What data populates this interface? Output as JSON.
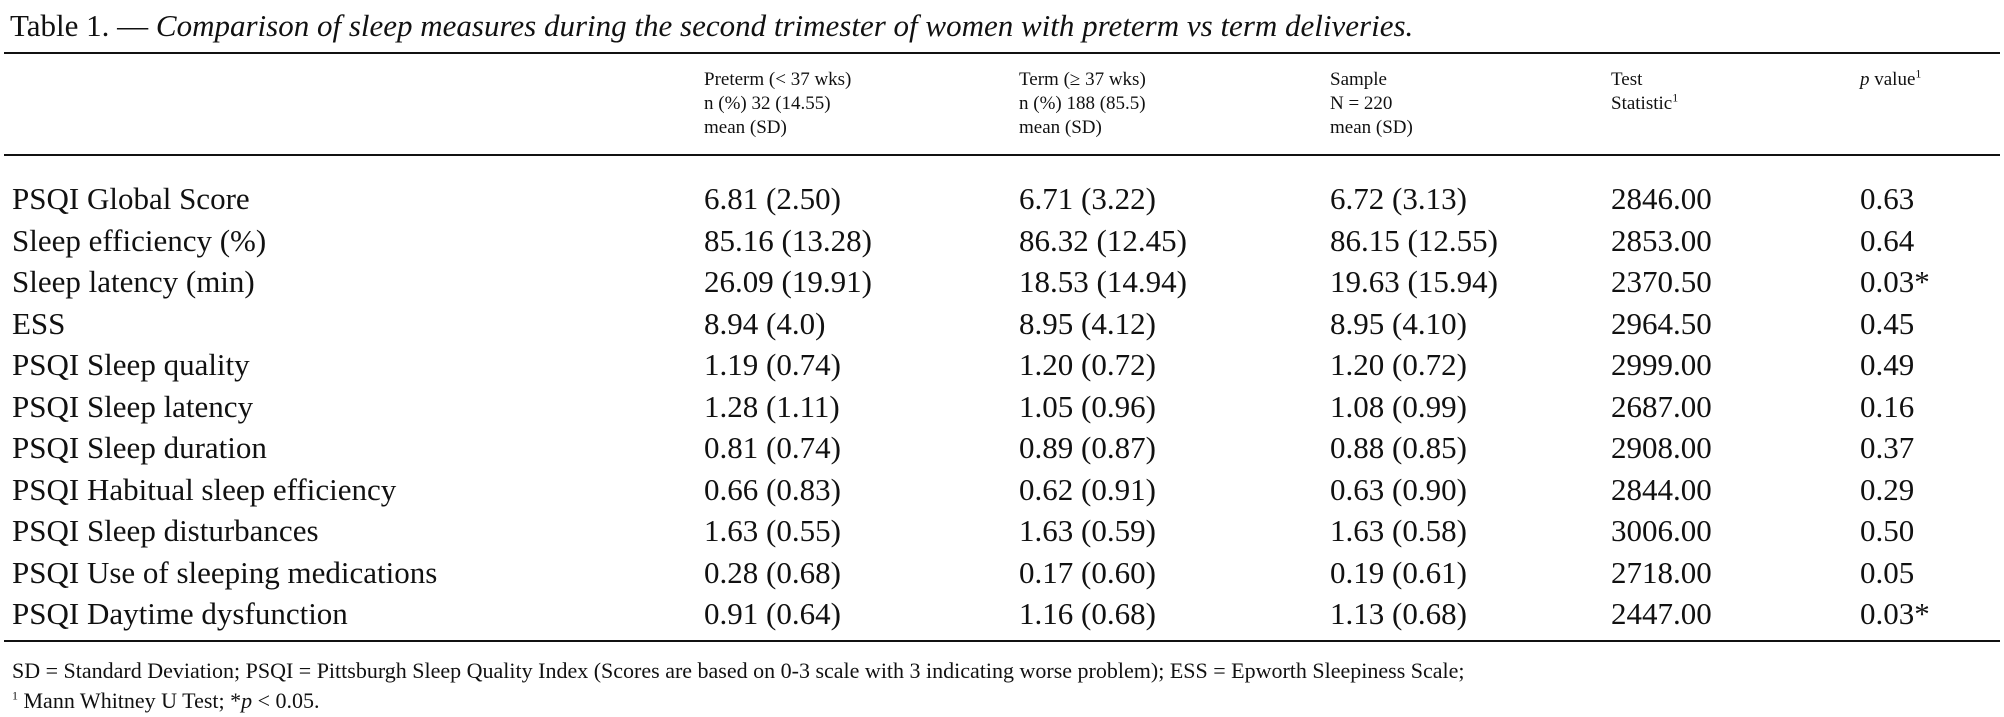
{
  "caption": {
    "label": "Table 1. —",
    "title": "Comparison of sleep measures during the second trimester of women with preterm vs term deliveries."
  },
  "columns": [
    {
      "lines": [
        "Preterm (< 37 wks)",
        "n (%) 32 (14.55)",
        "mean (SD)"
      ]
    },
    {
      "lines": [
        "Term (≥ 37 wks)",
        "n (%) 188 (85.5)",
        "mean (SD)"
      ]
    },
    {
      "lines": [
        "Sample",
        "N = 220",
        "mean (SD)"
      ]
    },
    {
      "lines": [
        "Test",
        "Statistic"
      ],
      "sup": "1"
    },
    {
      "p_letter": "p",
      "rest": " value",
      "sup": "1"
    }
  ],
  "rows": [
    {
      "label": "PSQI Global Score",
      "preterm": "6.81 (2.50)",
      "term": "6.71 (3.22)",
      "sample": "6.72 (3.13)",
      "test": "2846.00",
      "p": "0.63"
    },
    {
      "label": "Sleep efficiency (%)",
      "preterm": "85.16 (13.28)",
      "term": "86.32 (12.45)",
      "sample": "86.15 (12.55)",
      "test": "2853.00",
      "p": "0.64"
    },
    {
      "label": "Sleep latency (min)",
      "preterm": "26.09 (19.91)",
      "term": "18.53 (14.94)",
      "sample": "19.63 (15.94)",
      "test": "2370.50",
      "p": "0.03*"
    },
    {
      "label": "ESS",
      "preterm": "8.94 (4.0)",
      "term": "8.95 (4.12)",
      "sample": "8.95 (4.10)",
      "test": "2964.50",
      "p": "0.45"
    },
    {
      "label": "PSQI Sleep quality",
      "preterm": "1.19 (0.74)",
      "term": "1.20 (0.72)",
      "sample": "1.20 (0.72)",
      "test": "2999.00",
      "p": "0.49"
    },
    {
      "label": "PSQI Sleep latency",
      "preterm": "1.28 (1.11)",
      "term": "1.05 (0.96)",
      "sample": "1.08 (0.99)",
      "test": "2687.00",
      "p": "0.16"
    },
    {
      "label": "PSQI Sleep duration",
      "preterm": "0.81 (0.74)",
      "term": "0.89 (0.87)",
      "sample": "0.88 (0.85)",
      "test": "2908.00",
      "p": "0.37"
    },
    {
      "label": "PSQI Habitual sleep efficiency",
      "preterm": "0.66 (0.83)",
      "term": "0.62 (0.91)",
      "sample": "0.63 (0.90)",
      "test": "2844.00",
      "p": "0.29"
    },
    {
      "label": "PSQI Sleep disturbances",
      "preterm": "1.63 (0.55)",
      "term": "1.63 (0.59)",
      "sample": "1.63 (0.58)",
      "test": "3006.00",
      "p": "0.50"
    },
    {
      "label": "PSQI Use of sleeping medications",
      "preterm": "0.28 (0.68)",
      "term": "0.17 (0.60)",
      "sample": "0.19 (0.61)",
      "test": "2718.00",
      "p": "0.05"
    },
    {
      "label": "PSQI Daytime dysfunction",
      "preterm": "0.91 (0.64)",
      "term": "1.16 (0.68)",
      "sample": "1.13  (0.68)",
      "test": "2447.00",
      "p": "0.03*"
    }
  ],
  "footnotes": {
    "line1": "SD = Standard Deviation; PSQI = Pittsburgh Sleep Quality Index (Scores are based on 0-3 scale with 3 indicating worse problem); ESS = Epworth Sleepiness Scale;",
    "line2_sup": "1",
    "line2_text": " Mann Whitney U Test; *",
    "line2_p": "p",
    "line2_end": " < 0.05."
  }
}
